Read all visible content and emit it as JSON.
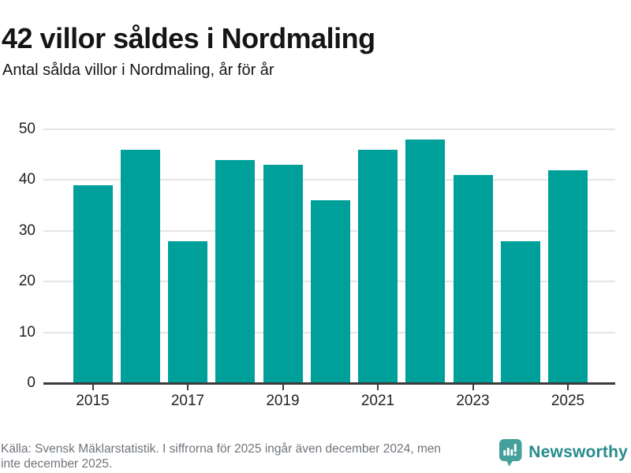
{
  "header": {
    "title": "42 villor såldes i Nordmaling",
    "subtitle": "Antal sålda villor i Nordmaling, år för år"
  },
  "chart_data": {
    "type": "bar",
    "title": "42 villor såldes i Nordmaling",
    "subtitle": "Antal sålda villor i Nordmaling, år för år",
    "categories": [
      "2015",
      "2016",
      "2017",
      "2018",
      "2019",
      "2020",
      "2021",
      "2022",
      "2023",
      "2024",
      "2025"
    ],
    "values": [
      39,
      46,
      28,
      44,
      43,
      36,
      46,
      48,
      41,
      28,
      42
    ],
    "ylabel": "",
    "xlabel": "",
    "ylim": [
      0,
      50
    ],
    "yticks": [
      0,
      10,
      20,
      30,
      40,
      50
    ],
    "xtick_labels": [
      "2015",
      "2017",
      "2019",
      "2021",
      "2023",
      "2025"
    ],
    "xtick_indices": [
      0,
      2,
      4,
      6,
      8,
      10
    ],
    "grid": "horizontal",
    "legend": "none",
    "bar_color": "#00a09a"
  },
  "footer": {
    "source_lines": [
      "Källa: Svensk Mäklarstatistik. I siffrorna för 2025 ingår även december 2024, men",
      "inte december 2025."
    ],
    "brand": "Newsworthy",
    "logo_icon": "speech-bubble-bar-chart-exclamation"
  },
  "colors": {
    "bar": "#00a09a",
    "grid": "#e5e5e5",
    "axis": "#3b3b3b",
    "tick_text": "#222222",
    "title_text": "#151515",
    "footer_text": "#6e757c",
    "logo_icon": "#44a09a",
    "logo_text": "#278b8c"
  }
}
